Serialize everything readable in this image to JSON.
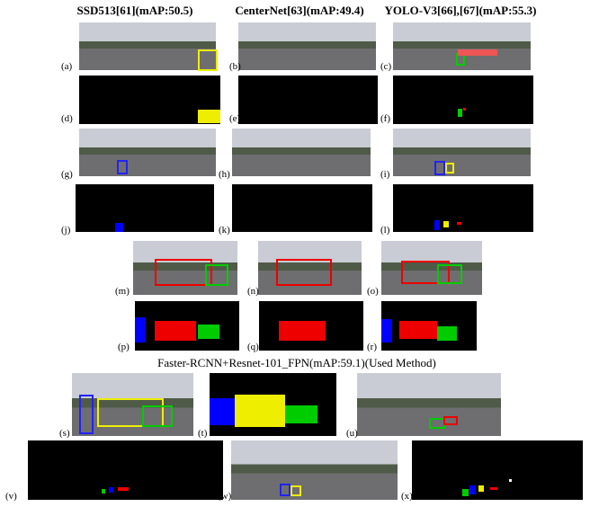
{
  "headers": [
    "SSD513[61](mAP:50.5)",
    "CenterNet[63](mAP:49.4)",
    "YOLO-V3[66],[67](mAP:55.3)"
  ],
  "caption": "Faster-RCNN+Resnet-101_FPN(mAP:59.1)(Used Method)",
  "panels": [
    "(a)",
    "(b)",
    "(c)",
    "(d)",
    "(e)",
    "(f)",
    "(g)",
    "(h)",
    "(i)",
    "(j)",
    "(k)",
    "(l)",
    "(m)",
    "(n)",
    "(o)",
    "(p)",
    "(q)",
    "(r)",
    "(s)",
    "(t)",
    "(u)",
    "(v)",
    "(w)",
    "(x)"
  ]
}
